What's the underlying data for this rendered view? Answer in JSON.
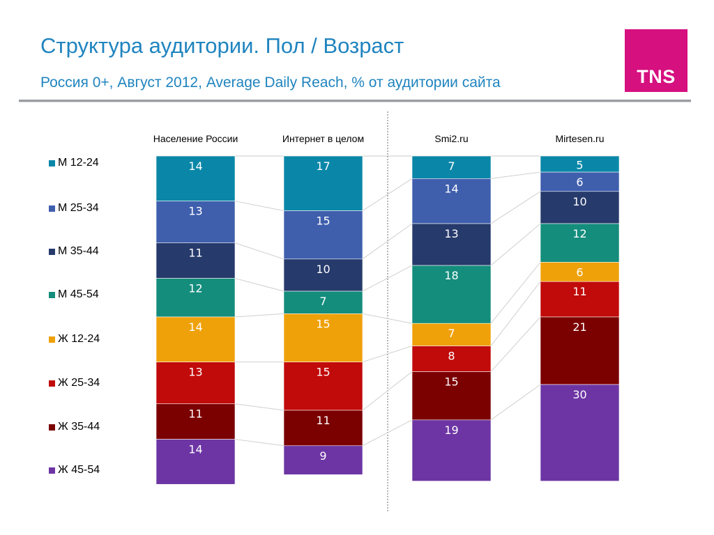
{
  "header": {
    "title": "Структура аудитории. Пол / Возраст",
    "subtitle": "Россия 0+, Август 2012, Average Daily Reach, % от аудитории сайта",
    "logo_text": "TNS"
  },
  "colors": {
    "title": "#1f84bf",
    "logo_background": "#d6107f"
  },
  "legend": {
    "placement": "left",
    "entries": [
      {
        "label": "М 12-24",
        "color": "#0a87a8"
      },
      {
        "label": "М 25-34",
        "color": "#3f5fad"
      },
      {
        "label": "М 35-44",
        "color": "#263a6b"
      },
      {
        "label": "М 45-54",
        "color": "#148d7d"
      },
      {
        "label": "Ж 12-24",
        "color": "#efa10a"
      },
      {
        "label": "Ж 25-34",
        "color": "#c10a0a"
      },
      {
        "label": "Ж 35-44",
        "color": "#7b0000"
      },
      {
        "label": "Ж 45-54",
        "color": "#6d35a4"
      }
    ]
  },
  "chart_data": {
    "type": "bar",
    "stacked": true,
    "normalized_to": 100,
    "title": "Структура аудитории. Пол / Возраст",
    "subtitle": "Россия 0+, Август 2012, Average Daily Reach, % от аудитории сайта",
    "xlabel": "",
    "ylabel": "",
    "grid": false,
    "legend_position": "left",
    "categories": [
      "Население России",
      "Интернет в целом",
      "Smi2.ru",
      "Mirtesen.ru"
    ],
    "series": [
      {
        "name": "М 12-24",
        "color": "#0a87a8",
        "values": [
          14,
          17,
          7,
          5
        ]
      },
      {
        "name": "М 25-34",
        "color": "#3f5fad",
        "values": [
          13,
          15,
          14,
          6
        ]
      },
      {
        "name": "М 35-44",
        "color": "#263a6b",
        "values": [
          11,
          10,
          13,
          10
        ]
      },
      {
        "name": "М 45-54",
        "color": "#148d7d",
        "values": [
          12,
          7,
          18,
          12
        ]
      },
      {
        "name": "Ж 12-24",
        "color": "#efa10a",
        "values": [
          14,
          15,
          7,
          6
        ]
      },
      {
        "name": "Ж 25-34",
        "color": "#c10a0a",
        "values": [
          13,
          15,
          8,
          11
        ]
      },
      {
        "name": "Ж 35-44",
        "color": "#7b0000",
        "values": [
          11,
          11,
          15,
          21
        ]
      },
      {
        "name": "Ж 45-54",
        "color": "#6d35a4",
        "values": [
          14,
          9,
          19,
          30
        ]
      }
    ]
  }
}
